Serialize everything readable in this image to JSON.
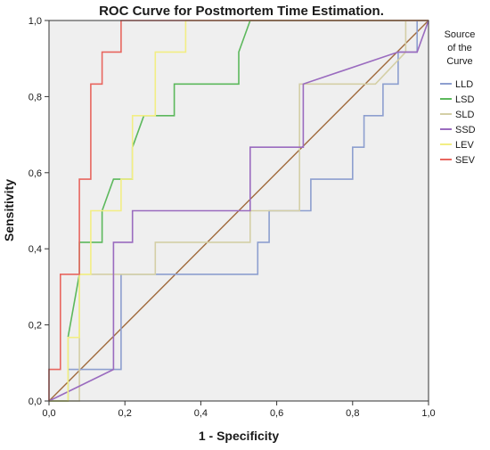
{
  "chart_data": {
    "type": "line",
    "title": "ROC Curve for Postmortem Time Estimation.",
    "xlabel": "1 - Specificity",
    "ylabel": "Sensitivity",
    "xlim": [
      0,
      1
    ],
    "ylim": [
      0,
      1
    ],
    "x_ticks": [
      "0,0",
      "0,2",
      "0,4",
      "0,6",
      "0,8",
      "1,0"
    ],
    "y_ticks": [
      "0,0",
      "0,2",
      "0,4",
      "0,6",
      "0,8",
      "1,0"
    ],
    "grid": false,
    "legend_title": "Source of the Curve",
    "legend_position": "right",
    "plot_background": "#efefef",
    "diagonal_reference": {
      "color": "#a06a3c",
      "points": [
        [
          0,
          0
        ],
        [
          1,
          1
        ]
      ]
    },
    "series": [
      {
        "name": "LLD",
        "color": "#8d9fcf",
        "points": [
          [
            0,
            0
          ],
          [
            0.05,
            0
          ],
          [
            0.05,
            0.083
          ],
          [
            0.19,
            0.083
          ],
          [
            0.19,
            0.333
          ],
          [
            0.55,
            0.333
          ],
          [
            0.55,
            0.417
          ],
          [
            0.58,
            0.417
          ],
          [
            0.58,
            0.5
          ],
          [
            0.69,
            0.5
          ],
          [
            0.69,
            0.583
          ],
          [
            0.8,
            0.583
          ],
          [
            0.8,
            0.667
          ],
          [
            0.83,
            0.667
          ],
          [
            0.83,
            0.75
          ],
          [
            0.88,
            0.75
          ],
          [
            0.88,
            0.833
          ],
          [
            0.92,
            0.833
          ],
          [
            0.92,
            0.917
          ],
          [
            0.97,
            0.917
          ],
          [
            0.97,
            1.0
          ],
          [
            1.0,
            1.0
          ]
        ]
      },
      {
        "name": "LSD",
        "color": "#5cb85c",
        "points": [
          [
            0,
            0
          ],
          [
            0.05,
            0
          ],
          [
            0.05,
            0.167
          ],
          [
            0.08,
            0.333
          ],
          [
            0.08,
            0.417
          ],
          [
            0.14,
            0.417
          ],
          [
            0.14,
            0.5
          ],
          [
            0.17,
            0.583
          ],
          [
            0.22,
            0.583
          ],
          [
            0.22,
            0.667
          ],
          [
            0.25,
            0.75
          ],
          [
            0.33,
            0.75
          ],
          [
            0.33,
            0.833
          ],
          [
            0.5,
            0.833
          ],
          [
            0.5,
            0.917
          ],
          [
            0.53,
            1.0
          ],
          [
            1.0,
            1.0
          ]
        ]
      },
      {
        "name": "SLD",
        "color": "#d4cfa6",
        "points": [
          [
            0,
            0
          ],
          [
            0.08,
            0
          ],
          [
            0.08,
            0.333
          ],
          [
            0.28,
            0.333
          ],
          [
            0.28,
            0.417
          ],
          [
            0.53,
            0.417
          ],
          [
            0.53,
            0.5
          ],
          [
            0.66,
            0.5
          ],
          [
            0.66,
            0.833
          ],
          [
            0.86,
            0.833
          ],
          [
            0.94,
            0.917
          ],
          [
            0.94,
            1.0
          ],
          [
            1.0,
            1.0
          ]
        ]
      },
      {
        "name": "SSD",
        "color": "#9a6bbf",
        "points": [
          [
            0,
            0
          ],
          [
            0.17,
            0.083
          ],
          [
            0.17,
            0.417
          ],
          [
            0.22,
            0.417
          ],
          [
            0.22,
            0.5
          ],
          [
            0.53,
            0.5
          ],
          [
            0.53,
            0.667
          ],
          [
            0.67,
            0.667
          ],
          [
            0.67,
            0.833
          ],
          [
            0.92,
            0.917
          ],
          [
            0.97,
            0.917
          ],
          [
            1.0,
            1.0
          ]
        ]
      },
      {
        "name": "LEV",
        "color": "#f2ee84",
        "points": [
          [
            0,
            0
          ],
          [
            0.05,
            0
          ],
          [
            0.05,
            0.167
          ],
          [
            0.08,
            0.167
          ],
          [
            0.08,
            0.333
          ],
          [
            0.11,
            0.333
          ],
          [
            0.11,
            0.5
          ],
          [
            0.19,
            0.5
          ],
          [
            0.19,
            0.583
          ],
          [
            0.22,
            0.583
          ],
          [
            0.22,
            0.75
          ],
          [
            0.28,
            0.75
          ],
          [
            0.28,
            0.917
          ],
          [
            0.36,
            0.917
          ],
          [
            0.36,
            1.0
          ],
          [
            1.0,
            1.0
          ]
        ]
      },
      {
        "name": "SEV",
        "color": "#e8665f",
        "points": [
          [
            0,
            0
          ],
          [
            0,
            0.083
          ],
          [
            0.03,
            0.083
          ],
          [
            0.03,
            0.333
          ],
          [
            0.08,
            0.333
          ],
          [
            0.08,
            0.583
          ],
          [
            0.11,
            0.583
          ],
          [
            0.11,
            0.833
          ],
          [
            0.14,
            0.833
          ],
          [
            0.14,
            0.917
          ],
          [
            0.19,
            0.917
          ],
          [
            0.19,
            1.0
          ],
          [
            1.0,
            1.0
          ]
        ]
      }
    ]
  }
}
